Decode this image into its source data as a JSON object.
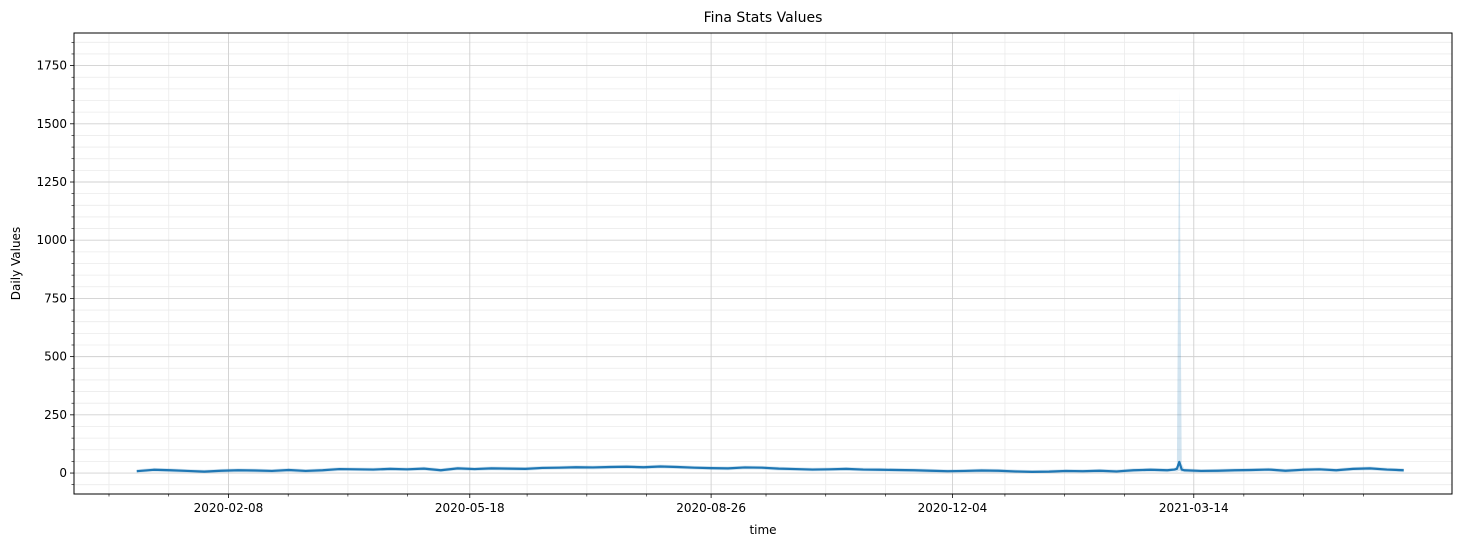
{
  "chart_data": {
    "type": "line",
    "title": "Fina Stats Values",
    "xlabel": "time",
    "ylabel": "Daily Values",
    "xlim": [
      "2019-12-06",
      "2021-06-29"
    ],
    "ylim": [
      -90,
      1890
    ],
    "x_ticks": [
      "2020-02-08",
      "2020-05-18",
      "2020-08-26",
      "2020-12-04",
      "2021-03-14"
    ],
    "y_ticks": [
      0,
      250,
      500,
      750,
      1000,
      1250,
      1500,
      1750
    ],
    "grid": true,
    "colors": {
      "line": "#1f77b4",
      "band": "#1f77b4"
    },
    "series": [
      {
        "x": [
          "2020-01-01",
          "2020-01-08",
          "2020-01-15",
          "2020-01-22",
          "2020-01-29",
          "2020-02-05",
          "2020-02-12",
          "2020-02-19",
          "2020-02-26",
          "2020-03-04",
          "2020-03-11",
          "2020-03-18",
          "2020-03-25",
          "2020-04-01",
          "2020-04-08",
          "2020-04-15",
          "2020-04-22",
          "2020-04-29",
          "2020-05-06",
          "2020-05-13",
          "2020-05-20",
          "2020-05-27",
          "2020-06-03",
          "2020-06-10",
          "2020-06-17",
          "2020-06-24",
          "2020-07-01",
          "2020-07-08",
          "2020-07-15",
          "2020-07-22",
          "2020-07-29",
          "2020-08-05",
          "2020-08-12",
          "2020-08-19",
          "2020-08-26",
          "2020-09-02",
          "2020-09-09",
          "2020-09-16",
          "2020-09-23",
          "2020-09-30",
          "2020-10-07",
          "2020-10-14",
          "2020-10-21",
          "2020-10-28",
          "2020-11-04",
          "2020-11-11",
          "2020-11-18",
          "2020-11-25",
          "2020-12-02",
          "2020-12-09",
          "2020-12-16",
          "2020-12-23",
          "2020-12-30",
          "2021-01-06",
          "2021-01-13",
          "2021-01-20",
          "2021-01-27",
          "2021-02-03",
          "2021-02-10",
          "2021-02-17",
          "2021-02-24",
          "2021-03-03",
          "2021-03-06",
          "2021-03-07",
          "2021-03-08",
          "2021-03-09",
          "2021-03-10",
          "2021-03-17",
          "2021-03-24",
          "2021-03-31",
          "2021-04-07",
          "2021-04-14",
          "2021-04-21",
          "2021-04-28",
          "2021-05-05",
          "2021-05-12",
          "2021-05-19",
          "2021-05-26",
          "2021-06-02",
          "2021-06-09"
        ],
        "y": [
          8,
          14,
          12,
          9,
          6,
          10,
          12,
          11,
          9,
          13,
          9,
          12,
          17,
          16,
          15,
          18,
          16,
          19,
          12,
          20,
          17,
          20,
          19,
          18,
          22,
          23,
          25,
          24,
          26,
          27,
          25,
          28,
          26,
          23,
          21,
          20,
          24,
          23,
          19,
          17,
          15,
          16,
          18,
          15,
          14,
          13,
          12,
          10,
          8,
          9,
          11,
          10,
          7,
          5,
          6,
          9,
          8,
          10,
          7,
          12,
          14,
          12,
          15,
          18,
          48,
          15,
          12,
          9,
          10,
          12,
          13,
          15,
          10,
          14,
          16,
          12,
          18,
          20,
          15,
          12
        ],
        "band_upper": [
          16,
          22,
          20,
          17,
          14,
          18,
          20,
          19,
          17,
          21,
          17,
          20,
          25,
          24,
          23,
          26,
          24,
          27,
          20,
          28,
          25,
          28,
          27,
          26,
          30,
          31,
          33,
          32,
          34,
          35,
          33,
          36,
          34,
          31,
          29,
          28,
          32,
          31,
          27,
          25,
          23,
          24,
          26,
          23,
          22,
          21,
          20,
          18,
          16,
          17,
          19,
          18,
          15,
          13,
          14,
          17,
          16,
          18,
          15,
          20,
          22,
          20,
          23,
          30,
          1650,
          40,
          20,
          17,
          18,
          20,
          21,
          23,
          18,
          22,
          24,
          20,
          26,
          28,
          23,
          20
        ],
        "band_lower": [
          2,
          6,
          4,
          2,
          0,
          2,
          4,
          3,
          1,
          5,
          1,
          4,
          9,
          8,
          7,
          10,
          8,
          11,
          4,
          12,
          9,
          12,
          11,
          10,
          14,
          15,
          17,
          16,
          18,
          19,
          17,
          20,
          18,
          15,
          13,
          12,
          16,
          15,
          11,
          9,
          7,
          8,
          10,
          7,
          6,
          5,
          4,
          2,
          0,
          1,
          3,
          2,
          0,
          0,
          0,
          1,
          0,
          2,
          0,
          4,
          6,
          4,
          7,
          6,
          10,
          5,
          4,
          1,
          2,
          4,
          5,
          7,
          2,
          6,
          8,
          4,
          10,
          12,
          7,
          4
        ]
      }
    ]
  }
}
